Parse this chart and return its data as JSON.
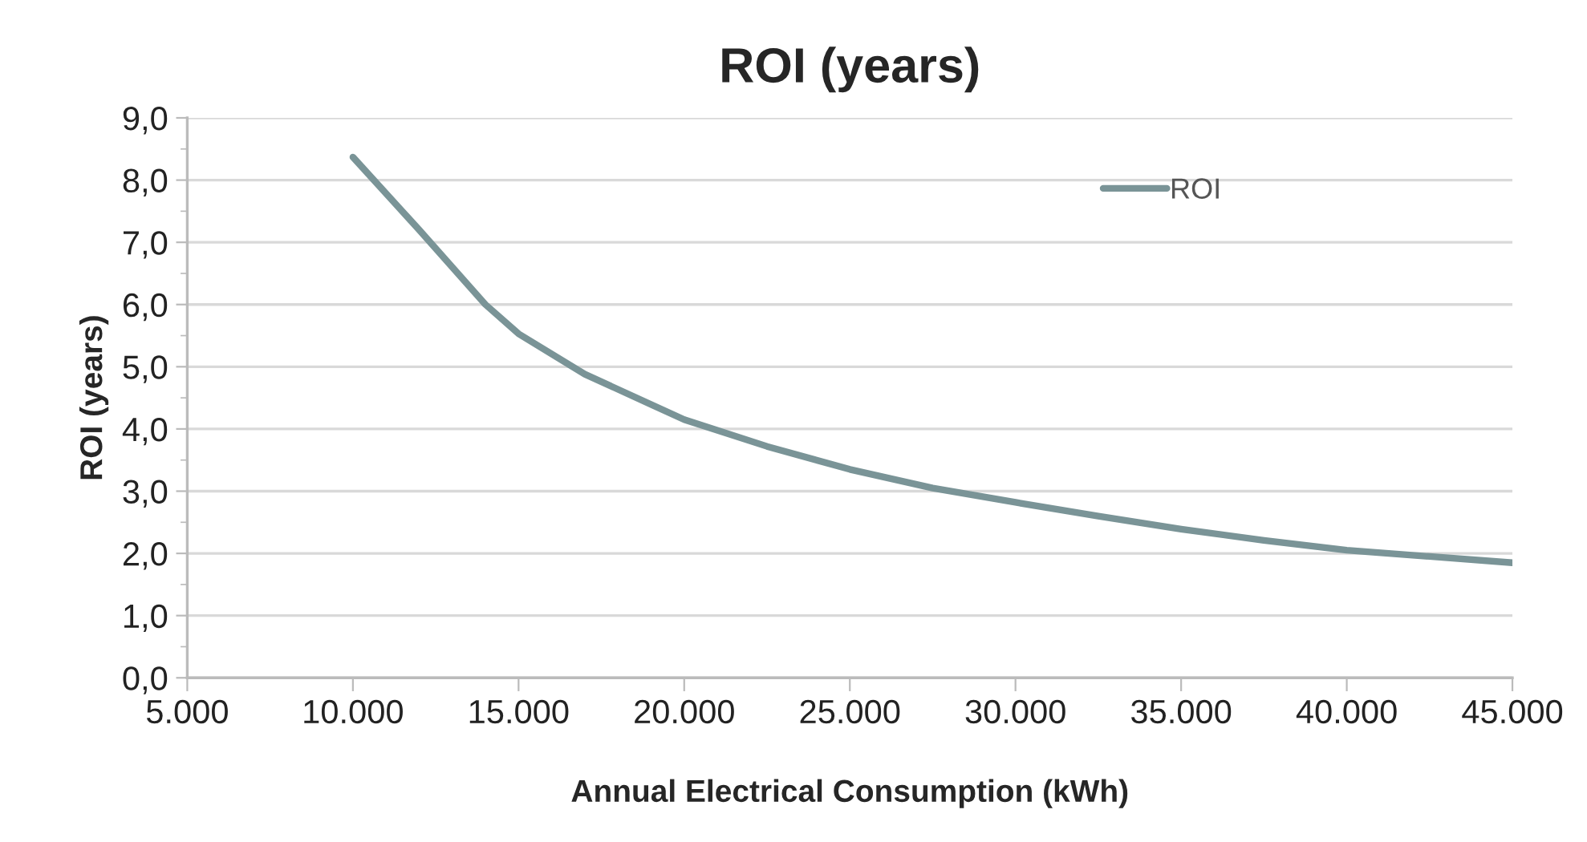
{
  "chart_data": {
    "type": "line",
    "title": "ROI (years)",
    "xlabel": "Annual Electrical Consumption (kWh)",
    "ylabel": "ROI (years)",
    "x": [
      10000,
      12000,
      14000,
      15000,
      17000,
      20000,
      22500,
      25000,
      27500,
      30000,
      32500,
      35000,
      37500,
      40000,
      42500,
      45000
    ],
    "series": [
      {
        "name": "ROI",
        "color": "#7a9497",
        "values": [
          8.37,
          7.2,
          6.0,
          5.53,
          4.88,
          4.15,
          3.72,
          3.35,
          3.05,
          2.82,
          2.6,
          2.39,
          2.21,
          2.05,
          1.95,
          1.85
        ]
      }
    ],
    "xlim": [
      5000,
      45000
    ],
    "xticks": [
      {
        "value": 5000,
        "label": "5.000"
      },
      {
        "value": 10000,
        "label": "10.000"
      },
      {
        "value": 15000,
        "label": "15.000"
      },
      {
        "value": 20000,
        "label": "20.000"
      },
      {
        "value": 25000,
        "label": "25.000"
      },
      {
        "value": 30000,
        "label": "30.000"
      },
      {
        "value": 35000,
        "label": "35.000"
      },
      {
        "value": 40000,
        "label": "40.000"
      },
      {
        "value": 45000,
        "label": "45.000"
      }
    ],
    "ylim": [
      0,
      9
    ],
    "yticks": [
      {
        "value": 0,
        "label": "0,0"
      },
      {
        "value": 1,
        "label": "1,0"
      },
      {
        "value": 2,
        "label": "2,0"
      },
      {
        "value": 3,
        "label": "3,0"
      },
      {
        "value": 4,
        "label": "4,0"
      },
      {
        "value": 5,
        "label": "5,0"
      },
      {
        "value": 6,
        "label": "6,0"
      },
      {
        "value": 7,
        "label": "7,0"
      },
      {
        "value": 8,
        "label": "8,0"
      },
      {
        "value": 9,
        "label": "9,0"
      }
    ],
    "grid": "y",
    "legend": "top right",
    "marker": "none",
    "line_style": "solid"
  }
}
